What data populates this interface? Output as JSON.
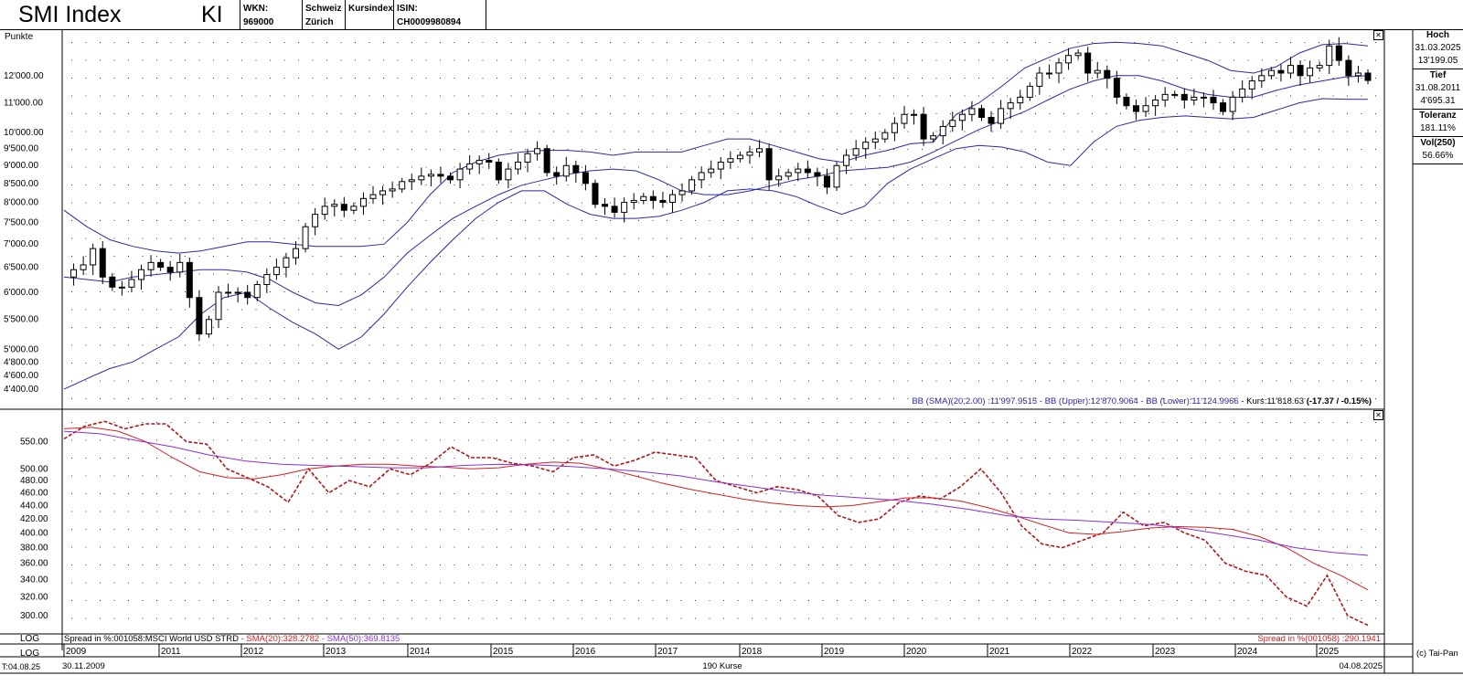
{
  "header": {
    "title": "SMI Index",
    "kind": "KI",
    "wkn": "WKN: 969000",
    "exchange_line1": "Schweiz",
    "exchange_line2": "Zürich",
    "type": "Kursindex",
    "isin": "ISIN: CH0009980894"
  },
  "side_panel": {
    "high_label": "Hoch",
    "high_date": "31.03.2025",
    "high_value": "13'199.05",
    "low_label": "Tief",
    "low_date": "31.08.2011",
    "low_value": "4'695.31",
    "tolerance_label": "Toleranz",
    "tolerance_value": "181.11%",
    "vol_label": "Vol(250)",
    "vol_value": "56.66%"
  },
  "upper_panel": {
    "y_unit": "Punkte",
    "legend": {
      "bb_sma": "BB (SMA)(20,2.00) :11'997.9515",
      "sep1": " - ",
      "bb_upper": "BB (Upper):12'870.9064",
      "sep2": " - ",
      "bb_lower": "BB (Lower):11'124.9966",
      "sep3": " - ",
      "kurs": "Kurs:11'818.63 ",
      "change": "(-17.37 / -0.15%)"
    },
    "scale_label": "LOG"
  },
  "lower_panel": {
    "legend_left_1": "Spread in %:001058:MSCI World USD STRD ",
    "legend_left_2": "- SMA(20):328.2782",
    "legend_left_3": " - SMA(50):369.8135",
    "legend_right": "Spread in %(001058) :290.1941",
    "scale_label": "LOG"
  },
  "footer": {
    "start_date": "30.11.2009",
    "end_date": "04.08.2025",
    "count": "190 Kurse",
    "stamp": "T:04.08.25",
    "copyright": "(c) Tai-Pan"
  },
  "colors": {
    "candle_up": "#ffffff",
    "candle_down": "#000000",
    "bollinger": "#2a2aa0",
    "spread": "#b01818",
    "sma20": "#d02020",
    "sma50": "#8a2fcf",
    "grid_dot": "#333333"
  },
  "chart_data": [
    {
      "type": "candlestick",
      "title": "SMI Index",
      "ylabel": "Punkte",
      "scale": "log",
      "ylim": [
        4200,
        13600
      ],
      "y_ticks": [
        4400,
        4600,
        4800,
        5000,
        5500,
        6000,
        6500,
        7000,
        7500,
        8000,
        8500,
        9000,
        9500,
        10000,
        11000,
        12000
      ],
      "y_tick_labels": [
        "4'400.00",
        "4'600.00",
        "4'800.00",
        "5'000.00",
        "5'500.00",
        "6'000.00",
        "6'500.00",
        "7'000.00",
        "7'500.00",
        "8'000.00",
        "8'500.00",
        "9'000.00",
        "9'500.00",
        "10'000.00",
        "11'000.00",
        "12'000.00"
      ],
      "x_ticks": [
        "2009",
        "2011",
        "2012",
        "2013",
        "2014",
        "2015",
        "2016",
        "2017",
        "2018",
        "2019",
        "2020",
        "2021",
        "2022",
        "2023",
        "2024",
        "2025"
      ],
      "x_range": [
        "2009-11-30",
        "2025-08-04"
      ],
      "grid": true,
      "close_monthly_approx": [
        6300,
        6450,
        6550,
        6900,
        6300,
        6100,
        6100,
        6250,
        6450,
        6600,
        6500,
        6400,
        6600,
        5900,
        5250,
        5500,
        6000,
        6000,
        6000,
        5900,
        6150,
        6350,
        6500,
        6700,
        6900,
        7400,
        7700,
        7900,
        7950,
        7800,
        7900,
        8100,
        8200,
        8300,
        8350,
        8550,
        8600,
        8700,
        8750,
        8700,
        8600,
        8900,
        9050,
        9150,
        9100,
        8600,
        8900,
        9100,
        9350,
        9500,
        8800,
        8700,
        9000,
        8800,
        8500,
        7950,
        7900,
        7750,
        8000,
        8050,
        8150,
        8050,
        8000,
        8200,
        8300,
        8600,
        8800,
        8900,
        9100,
        9200,
        9300,
        9400,
        9500,
        8600,
        8700,
        8800,
        8900,
        8800,
        8700,
        8400,
        9000,
        9300,
        9500,
        9700,
        9800,
        10000,
        10300,
        10600,
        10600,
        9800,
        9900,
        10200,
        10400,
        10600,
        10800,
        10500,
        10300,
        10800,
        11000,
        11200,
        11600,
        12100,
        12100,
        12500,
        12800,
        12900,
        12100,
        12200,
        11900,
        11200,
        10900,
        10700,
        10900,
        11100,
        11300,
        11300,
        11100,
        11200,
        11200,
        11000,
        10700,
        11200,
        11500,
        11800,
        12000,
        12200,
        12100,
        12400,
        12000,
        12300,
        12400,
        13199,
        12600,
        12000,
        12100,
        11818
      ],
      "bollinger_upper_approx": [
        7800,
        7400,
        7100,
        6950,
        6850,
        6800,
        6850,
        6950,
        7050,
        7050,
        7000,
        6950,
        6950,
        6950,
        7000,
        7500,
        8200,
        8800,
        9100,
        9300,
        9400,
        9450,
        9450,
        9400,
        9300,
        9400,
        9400,
        9400,
        9600,
        9800,
        9800,
        9600,
        9400,
        9200,
        9100,
        9300,
        9450,
        9650,
        9700,
        10600,
        11000,
        11600,
        12300,
        12700,
        13100,
        13300,
        13350,
        13300,
        13200,
        12900,
        12600,
        12200,
        12100,
        12350,
        12900,
        13250,
        13300,
        13200
      ],
      "bollinger_sma_approx": [
        6300,
        6250,
        6200,
        6300,
        6350,
        6400,
        6450,
        6450,
        6400,
        6250,
        6000,
        5800,
        5750,
        5950,
        6300,
        6800,
        7200,
        7600,
        7900,
        8200,
        8450,
        8600,
        8750,
        8850,
        8900,
        8850,
        8600,
        8300,
        8200,
        8200,
        8300,
        8450,
        8600,
        8700,
        8850,
        8900,
        8950,
        9100,
        9400,
        9750,
        10100,
        10400,
        10700,
        11100,
        11500,
        11800,
        12000,
        12000,
        11800,
        11500,
        11300,
        11200,
        11200,
        11450,
        11650,
        11800,
        11950,
        12000
      ],
      "bollinger_lower_approx": [
        4400,
        4550,
        4700,
        4800,
        5000,
        5200,
        5600,
        5900,
        6000,
        5700,
        5450,
        5250,
        5000,
        5200,
        5600,
        6100,
        6600,
        7100,
        7600,
        8000,
        8300,
        8300,
        7950,
        7700,
        7600,
        7600,
        7650,
        7800,
        8000,
        8300,
        8350,
        8300,
        8150,
        7900,
        7700,
        7900,
        8500,
        8900,
        9200,
        9500,
        9600,
        9550,
        9400,
        9100,
        9000,
        9700,
        10200,
        10400,
        10500,
        10550,
        10500,
        10450,
        10500,
        10750,
        11000,
        11150,
        11130,
        11125
      ]
    },
    {
      "type": "line",
      "title": "Spread in %:001058:MSCI World USD STRD",
      "scale": "log",
      "ylim": [
        285,
        600
      ],
      "y_ticks": [
        300,
        320,
        340,
        360,
        380,
        400,
        420,
        440,
        460,
        480,
        500,
        550
      ],
      "y_tick_labels": [
        "300.00",
        "320.00",
        "340.00",
        "360.00",
        "380.00",
        "400.00",
        "420.00",
        "440.00",
        "460.00",
        "480.00",
        "500.00",
        "550.00"
      ],
      "series": [
        {
          "name": "Spread in %",
          "style": "dashed",
          "values": [
            555,
            580,
            590,
            575,
            585,
            585,
            550,
            545,
            500,
            485,
            470,
            445,
            500,
            460,
            480,
            470,
            500,
            490,
            510,
            540,
            520,
            520,
            510,
            505,
            495,
            520,
            525,
            505,
            515,
            530,
            525,
            520,
            480,
            470,
            460,
            470,
            465,
            455,
            425,
            415,
            420,
            445,
            455,
            450,
            470,
            500,
            460,
            410,
            385,
            380,
            390,
            400,
            430,
            410,
            415,
            400,
            390,
            360,
            350,
            345,
            320,
            310,
            345,
            300,
            290
          ]
        },
        {
          "name": "SMA(20)",
          "style": "solid",
          "values": [
            575,
            578,
            570,
            550,
            520,
            495,
            485,
            483,
            490,
            500,
            505,
            508,
            508,
            505,
            503,
            500,
            502,
            508,
            512,
            510,
            500,
            488,
            476,
            466,
            458,
            450,
            444,
            440,
            438,
            440,
            446,
            452,
            452,
            447,
            437,
            425,
            412,
            400,
            398,
            402,
            407,
            409,
            408,
            405,
            395,
            380,
            360,
            345,
            328
          ]
        },
        {
          "name": "SMA(50)",
          "style": "solid",
          "values": [
            570,
            565,
            552,
            540,
            525,
            514,
            508,
            506,
            504,
            502,
            502,
            506,
            508,
            507,
            504,
            500,
            495,
            488,
            478,
            470,
            462,
            456,
            452,
            448,
            442,
            434,
            425,
            420,
            418,
            415,
            412,
            406,
            398,
            390,
            380,
            374,
            370
          ]
        }
      ]
    }
  ]
}
